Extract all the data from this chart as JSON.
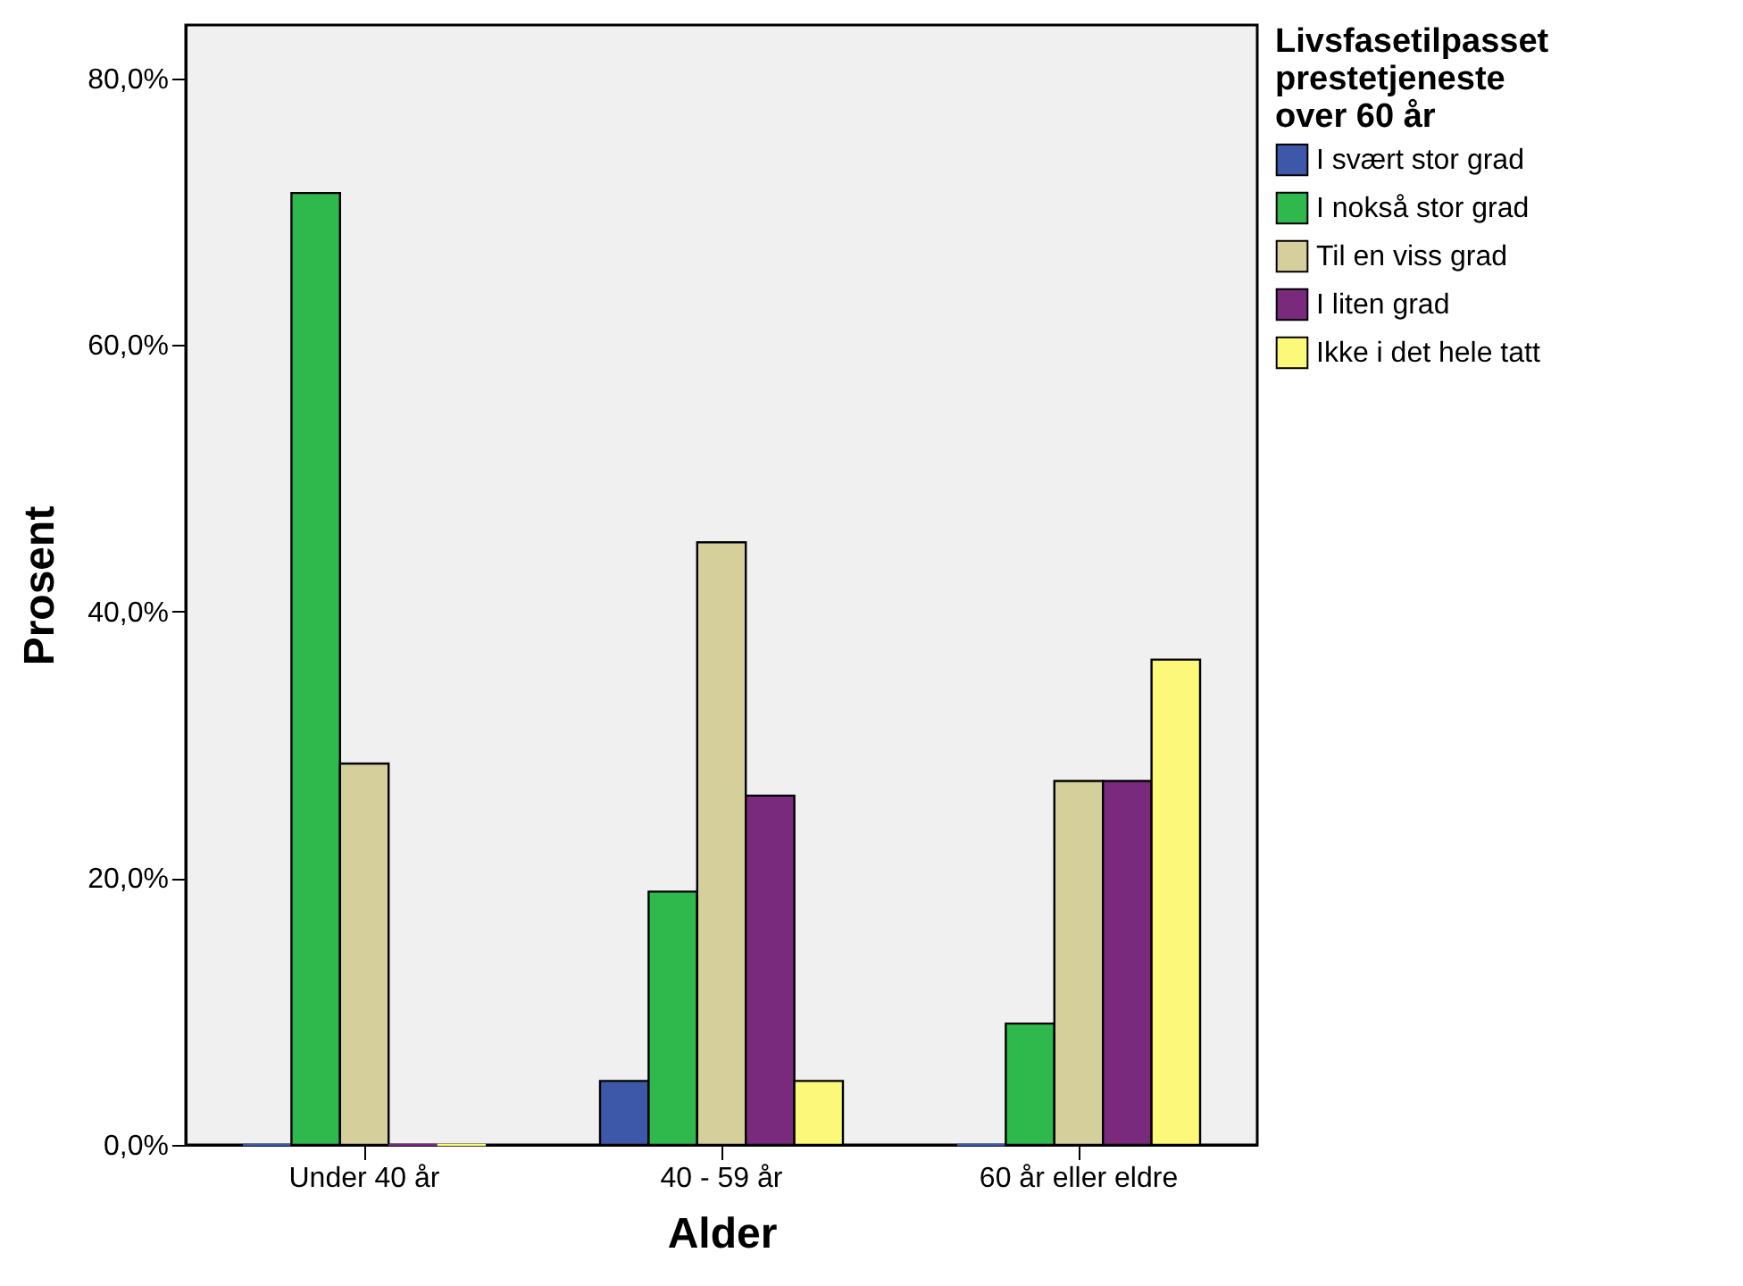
{
  "chart_data": {
    "type": "bar",
    "xlabel": "Alder",
    "ylabel": "Prosent",
    "legend_title": "Livsfasetilpasset prestetjeneste over 60 år",
    "categories": [
      "Under 40 år",
      "40 - 59 år",
      "60 år eller eldre"
    ],
    "series": [
      {
        "name": "I svært stor grad",
        "color": "#3d58a8",
        "values": [
          0,
          4.8,
          0
        ]
      },
      {
        "name": "I nokså stor grad",
        "color": "#2fb94c",
        "values": [
          71.4,
          19.0,
          9.1
        ]
      },
      {
        "name": "Til en viss grad",
        "color": "#d5d09b",
        "values": [
          28.6,
          45.2,
          27.3
        ]
      },
      {
        "name": "I liten grad",
        "color": "#7a2a7c",
        "values": [
          0,
          26.2,
          27.3
        ]
      },
      {
        "name": "Ikke i det hele tatt",
        "color": "#fbf87a",
        "values": [
          0,
          4.8,
          36.4
        ]
      }
    ],
    "ylim": [
      0,
      84
    ],
    "yticks": [
      {
        "value": 0,
        "label": "0,0%"
      },
      {
        "value": 20,
        "label": "20,0%"
      },
      {
        "value": 40,
        "label": "40,0%"
      },
      {
        "value": 60,
        "label": "60,0%"
      },
      {
        "value": 80,
        "label": "80,0%"
      }
    ],
    "grid": false,
    "legend": "top right"
  }
}
